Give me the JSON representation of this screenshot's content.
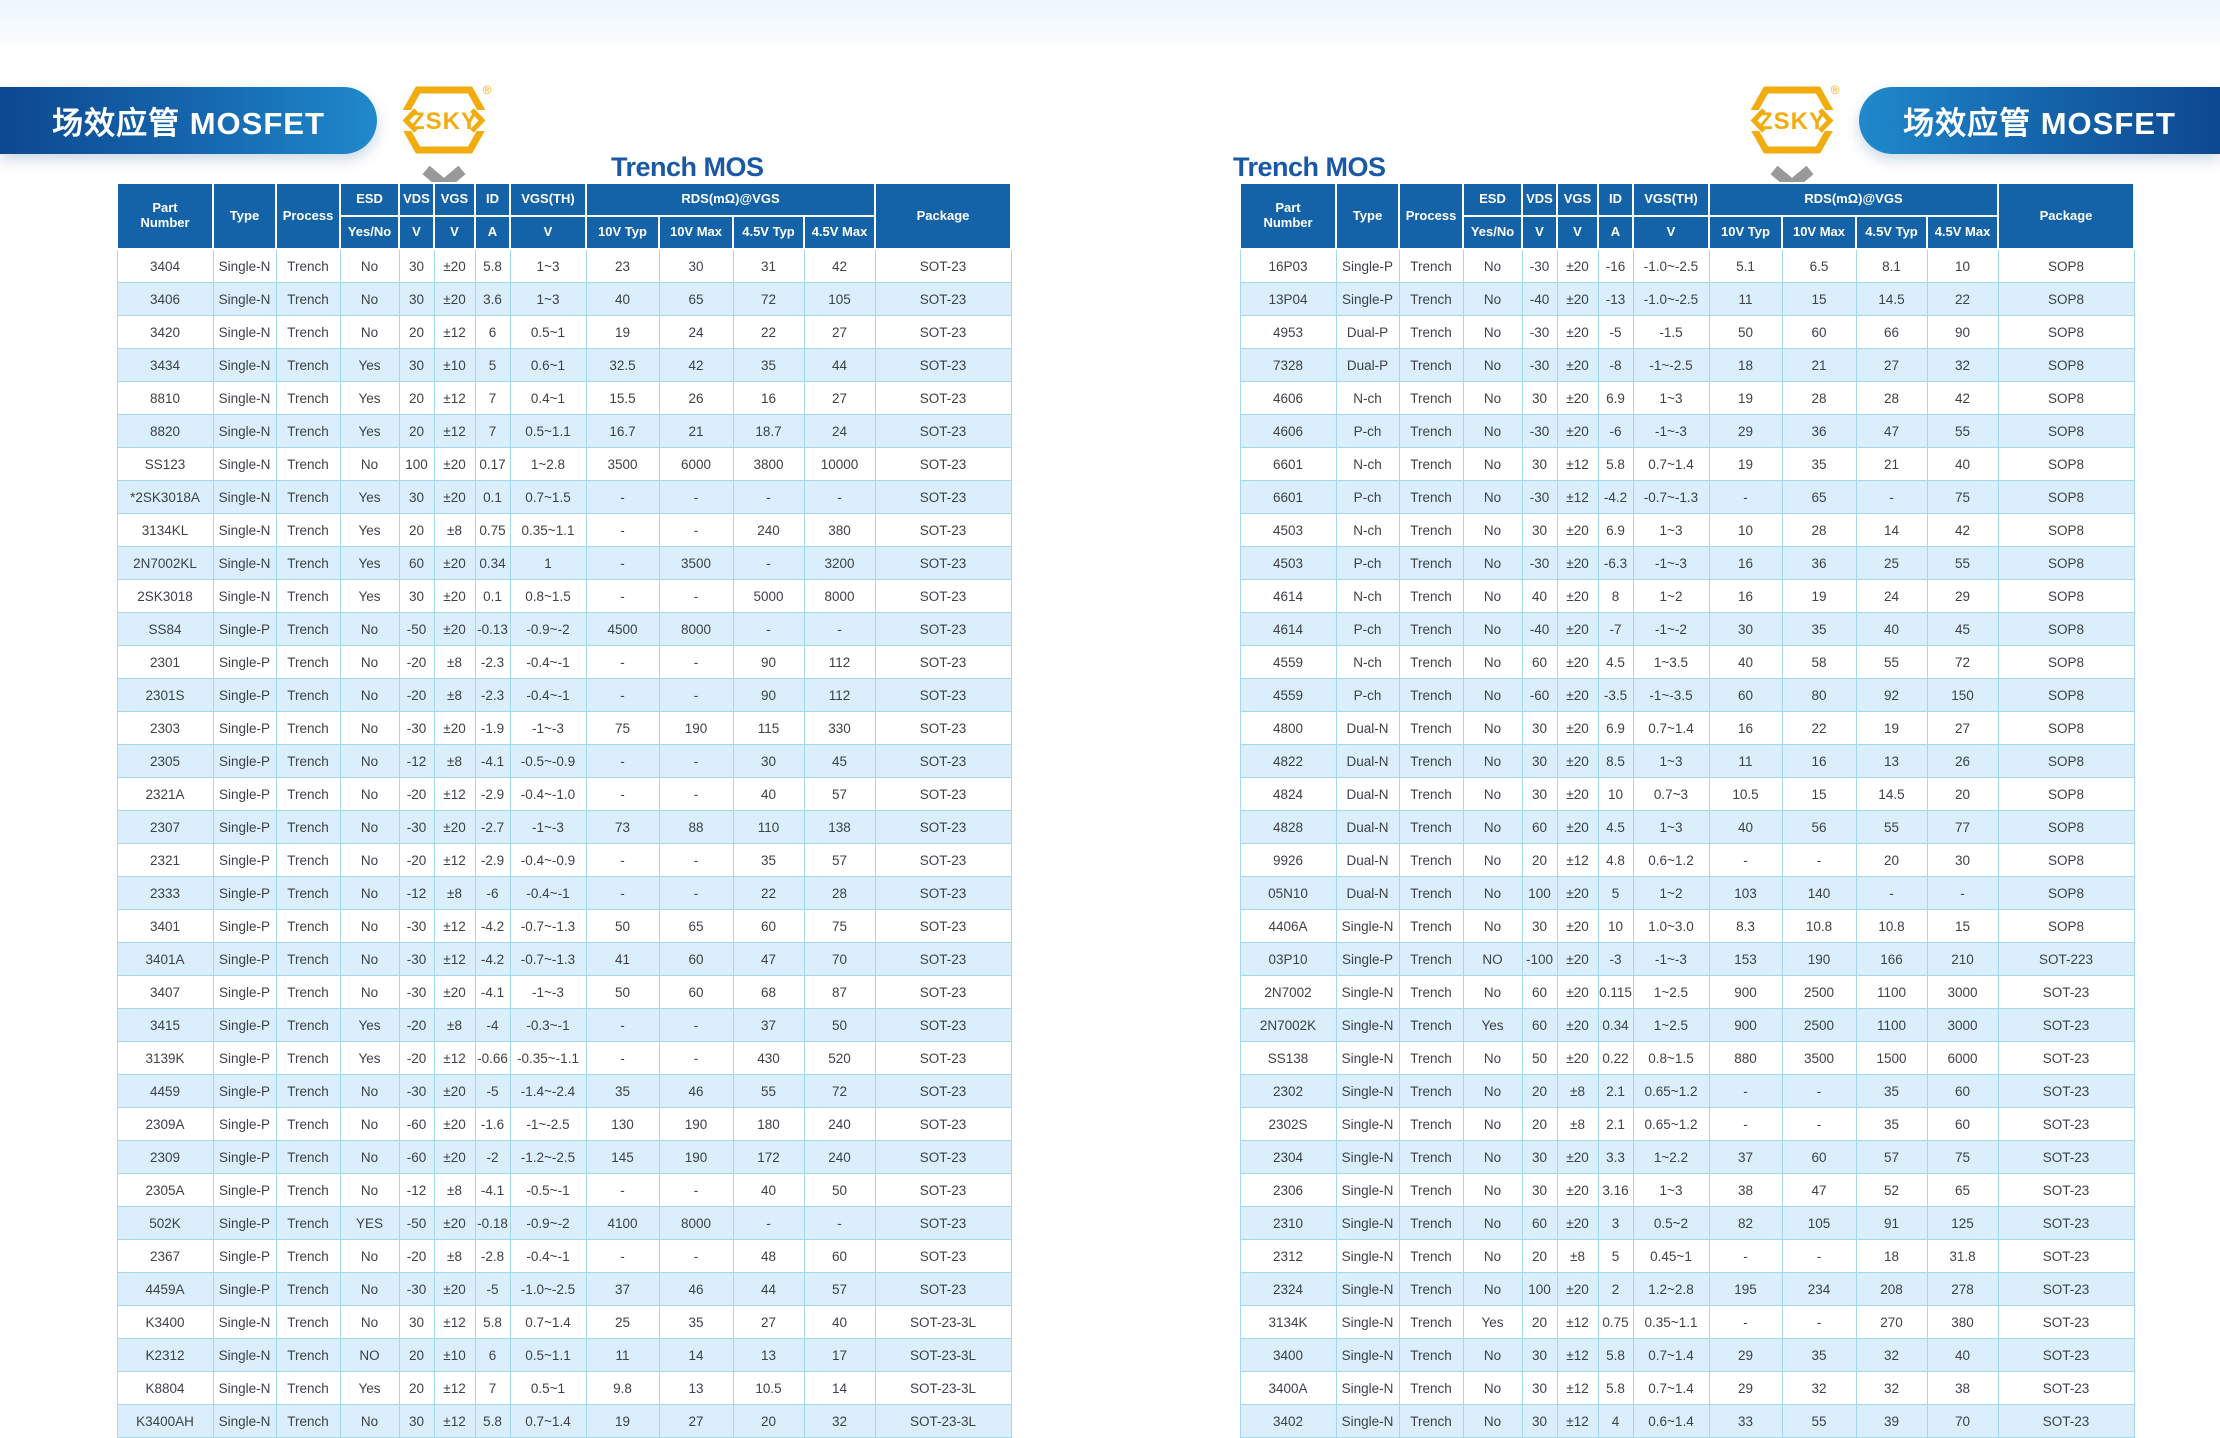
{
  "page": {
    "banner_title": "场效应管 MOSFET",
    "logo": {
      "brand": "ZSKY",
      "registered_mark": "®"
    },
    "section_title": "Trench MOS",
    "colors": {
      "header_blue": "#1463a8",
      "banner_dark": "#0d4890",
      "banner_light": "#2089cc",
      "row_alt": "#daeefb",
      "grid_border": "#a3d8f1",
      "title_blue": "#1858a6",
      "brand_gold": "#f3ac0e",
      "chevron_gray": "#97999b"
    }
  },
  "columns": {
    "part_number": "Part Number",
    "type": "Type",
    "process": "Process",
    "esd": "ESD",
    "esd_sub": "Yes/No",
    "vds": "VDS",
    "vgs": "VGS",
    "id": "ID",
    "vgsth": "VGS(TH)",
    "unit_v": "V",
    "unit_a": "A",
    "rds_group": "RDS(mΩ)@VGS",
    "rds_10v_typ": "10V Typ",
    "rds_10v_max": "10V Max",
    "rds_45_typ": "4.5V Typ",
    "rds_45_max": "4.5V Max",
    "package": "Package"
  },
  "left_table": {
    "rows": [
      [
        "3404",
        "Single-N",
        "Trench",
        "No",
        "30",
        "±20",
        "5.8",
        "1~3",
        "23",
        "30",
        "31",
        "42",
        "SOT-23"
      ],
      [
        "3406",
        "Single-N",
        "Trench",
        "No",
        "30",
        "±20",
        "3.6",
        "1~3",
        "40",
        "65",
        "72",
        "105",
        "SOT-23"
      ],
      [
        "3420",
        "Single-N",
        "Trench",
        "No",
        "20",
        "±12",
        "6",
        "0.5~1",
        "19",
        "24",
        "22",
        "27",
        "SOT-23"
      ],
      [
        "3434",
        "Single-N",
        "Trench",
        "Yes",
        "30",
        "±10",
        "5",
        "0.6~1",
        "32.5",
        "42",
        "35",
        "44",
        "SOT-23"
      ],
      [
        "8810",
        "Single-N",
        "Trench",
        "Yes",
        "20",
        "±12",
        "7",
        "0.4~1",
        "15.5",
        "26",
        "16",
        "27",
        "SOT-23"
      ],
      [
        "8820",
        "Single-N",
        "Trench",
        "Yes",
        "20",
        "±12",
        "7",
        "0.5~1.1",
        "16.7",
        "21",
        "18.7",
        "24",
        "SOT-23"
      ],
      [
        "SS123",
        "Single-N",
        "Trench",
        "No",
        "100",
        "±20",
        "0.17",
        "1~2.8",
        "3500",
        "6000",
        "3800",
        "10000",
        "SOT-23"
      ],
      [
        "*2SK3018A",
        "Single-N",
        "Trench",
        "Yes",
        "30",
        "±20",
        "0.1",
        "0.7~1.5",
        "-",
        "-",
        "-",
        "-",
        "SOT-23"
      ],
      [
        "3134KL",
        "Single-N",
        "Trench",
        "Yes",
        "20",
        "±8",
        "0.75",
        "0.35~1.1",
        "-",
        "-",
        "240",
        "380",
        "SOT-23"
      ],
      [
        "2N7002KL",
        "Single-N",
        "Trench",
        "Yes",
        "60",
        "±20",
        "0.34",
        "1",
        "-",
        "3500",
        "-",
        "3200",
        "SOT-23"
      ],
      [
        "2SK3018",
        "Single-N",
        "Trench",
        "Yes",
        "30",
        "±20",
        "0.1",
        "0.8~1.5",
        "-",
        "-",
        "5000",
        "8000",
        "SOT-23"
      ],
      [
        "SS84",
        "Single-P",
        "Trench",
        "No",
        "-50",
        "±20",
        "-0.13",
        "-0.9~-2",
        "4500",
        "8000",
        "-",
        "-",
        "SOT-23"
      ],
      [
        "2301",
        "Single-P",
        "Trench",
        "No",
        "-20",
        "±8",
        "-2.3",
        "-0.4~-1",
        "-",
        "-",
        "90",
        "112",
        "SOT-23"
      ],
      [
        "2301S",
        "Single-P",
        "Trench",
        "No",
        "-20",
        "±8",
        "-2.3",
        "-0.4~-1",
        "-",
        "-",
        "90",
        "112",
        "SOT-23"
      ],
      [
        "2303",
        "Single-P",
        "Trench",
        "No",
        "-30",
        "±20",
        "-1.9",
        "-1~-3",
        "75",
        "190",
        "115",
        "330",
        "SOT-23"
      ],
      [
        "2305",
        "Single-P",
        "Trench",
        "No",
        "-12",
        "±8",
        "-4.1",
        "-0.5~-0.9",
        "-",
        "-",
        "30",
        "45",
        "SOT-23"
      ],
      [
        "2321A",
        "Single-P",
        "Trench",
        "No",
        "-20",
        "±12",
        "-2.9",
        "-0.4~-1.0",
        "-",
        "-",
        "40",
        "57",
        "SOT-23"
      ],
      [
        "2307",
        "Single-P",
        "Trench",
        "No",
        "-30",
        "±20",
        "-2.7",
        "-1~-3",
        "73",
        "88",
        "110",
        "138",
        "SOT-23"
      ],
      [
        "2321",
        "Single-P",
        "Trench",
        "No",
        "-20",
        "±12",
        "-2.9",
        "-0.4~-0.9",
        "-",
        "-",
        "35",
        "57",
        "SOT-23"
      ],
      [
        "2333",
        "Single-P",
        "Trench",
        "No",
        "-12",
        "±8",
        "-6",
        "-0.4~-1",
        "-",
        "-",
        "22",
        "28",
        "SOT-23"
      ],
      [
        "3401",
        "Single-P",
        "Trench",
        "No",
        "-30",
        "±12",
        "-4.2",
        "-0.7~-1.3",
        "50",
        "65",
        "60",
        "75",
        "SOT-23"
      ],
      [
        "3401A",
        "Single-P",
        "Trench",
        "No",
        "-30",
        "±12",
        "-4.2",
        "-0.7~-1.3",
        "41",
        "60",
        "47",
        "70",
        "SOT-23"
      ],
      [
        "3407",
        "Single-P",
        "Trench",
        "No",
        "-30",
        "±20",
        "-4.1",
        "-1~-3",
        "50",
        "60",
        "68",
        "87",
        "SOT-23"
      ],
      [
        "3415",
        "Single-P",
        "Trench",
        "Yes",
        "-20",
        "±8",
        "-4",
        "-0.3~-1",
        "-",
        "-",
        "37",
        "50",
        "SOT-23"
      ],
      [
        "3139K",
        "Single-P",
        "Trench",
        "Yes",
        "-20",
        "±12",
        "-0.66",
        "-0.35~-1.1",
        "-",
        "-",
        "430",
        "520",
        "SOT-23"
      ],
      [
        "4459",
        "Single-P",
        "Trench",
        "No",
        "-30",
        "±20",
        "-5",
        "-1.4~-2.4",
        "35",
        "46",
        "55",
        "72",
        "SOT-23"
      ],
      [
        "2309A",
        "Single-P",
        "Trench",
        "No",
        "-60",
        "±20",
        "-1.6",
        "-1~-2.5",
        "130",
        "190",
        "180",
        "240",
        "SOT-23"
      ],
      [
        "2309",
        "Single-P",
        "Trench",
        "No",
        "-60",
        "±20",
        "-2",
        "-1.2~-2.5",
        "145",
        "190",
        "172",
        "240",
        "SOT-23"
      ],
      [
        "2305A",
        "Single-P",
        "Trench",
        "No",
        "-12",
        "±8",
        "-4.1",
        "-0.5~-1",
        "-",
        "-",
        "40",
        "50",
        "SOT-23"
      ],
      [
        "502K",
        "Single-P",
        "Trench",
        "YES",
        "-50",
        "±20",
        "-0.18",
        "-0.9~-2",
        "4100",
        "8000",
        "-",
        "-",
        "SOT-23"
      ],
      [
        "2367",
        "Single-P",
        "Trench",
        "No",
        "-20",
        "±8",
        "-2.8",
        "-0.4~-1",
        "-",
        "-",
        "48",
        "60",
        "SOT-23"
      ],
      [
        "4459A",
        "Single-P",
        "Trench",
        "No",
        "-30",
        "±20",
        "-5",
        "-1.0~-2.5",
        "37",
        "46",
        "44",
        "57",
        "SOT-23"
      ],
      [
        "K3400",
        "Single-N",
        "Trench",
        "No",
        "30",
        "±12",
        "5.8",
        "0.7~1.4",
        "25",
        "35",
        "27",
        "40",
        "SOT-23-3L"
      ],
      [
        "K2312",
        "Single-N",
        "Trench",
        "NO",
        "20",
        "±10",
        "6",
        "0.5~1.1",
        "11",
        "14",
        "13",
        "17",
        "SOT-23-3L"
      ],
      [
        "K8804",
        "Single-N",
        "Trench",
        "Yes",
        "20",
        "±12",
        "7",
        "0.5~1",
        "9.8",
        "13",
        "10.5",
        "14",
        "SOT-23-3L"
      ],
      [
        "K3400AH",
        "Single-N",
        "Trench",
        "No",
        "30",
        "±12",
        "5.8",
        "0.7~1.4",
        "19",
        "27",
        "20",
        "32",
        "SOT-23-3L"
      ]
    ]
  },
  "right_table": {
    "rows": [
      [
        "16P03",
        "Single-P",
        "Trench",
        "No",
        "-30",
        "±20",
        "-16",
        "-1.0~-2.5",
        "5.1",
        "6.5",
        "8.1",
        "10",
        "SOP8"
      ],
      [
        "13P04",
        "Single-P",
        "Trench",
        "No",
        "-40",
        "±20",
        "-13",
        "-1.0~-2.5",
        "11",
        "15",
        "14.5",
        "22",
        "SOP8"
      ],
      [
        "4953",
        "Dual-P",
        "Trench",
        "No",
        "-30",
        "±20",
        "-5",
        "-1.5",
        "50",
        "60",
        "66",
        "90",
        "SOP8"
      ],
      [
        "7328",
        "Dual-P",
        "Trench",
        "No",
        "-30",
        "±20",
        "-8",
        "-1~-2.5",
        "18",
        "21",
        "27",
        "32",
        "SOP8"
      ],
      [
        "4606",
        "N-ch",
        "Trench",
        "No",
        "30",
        "±20",
        "6.9",
        "1~3",
        "19",
        "28",
        "28",
        "42",
        "SOP8"
      ],
      [
        "4606",
        "P-ch",
        "Trench",
        "No",
        "-30",
        "±20",
        "-6",
        "-1~-3",
        "29",
        "36",
        "47",
        "55",
        "SOP8"
      ],
      [
        "6601",
        "N-ch",
        "Trench",
        "No",
        "30",
        "±12",
        "5.8",
        "0.7~1.4",
        "19",
        "35",
        "21",
        "40",
        "SOP8"
      ],
      [
        "6601",
        "P-ch",
        "Trench",
        "No",
        "-30",
        "±12",
        "-4.2",
        "-0.7~-1.3",
        "-",
        "65",
        "-",
        "75",
        "SOP8"
      ],
      [
        "4503",
        "N-ch",
        "Trench",
        "No",
        "30",
        "±20",
        "6.9",
        "1~3",
        "10",
        "28",
        "14",
        "42",
        "SOP8"
      ],
      [
        "4503",
        "P-ch",
        "Trench",
        "No",
        "-30",
        "±20",
        "-6.3",
        "-1~-3",
        "16",
        "36",
        "25",
        "55",
        "SOP8"
      ],
      [
        "4614",
        "N-ch",
        "Trench",
        "No",
        "40",
        "±20",
        "8",
        "1~2",
        "16",
        "19",
        "24",
        "29",
        "SOP8"
      ],
      [
        "4614",
        "P-ch",
        "Trench",
        "No",
        "-40",
        "±20",
        "-7",
        "-1~-2",
        "30",
        "35",
        "40",
        "45",
        "SOP8"
      ],
      [
        "4559",
        "N-ch",
        "Trench",
        "No",
        "60",
        "±20",
        "4.5",
        "1~3.5",
        "40",
        "58",
        "55",
        "72",
        "SOP8"
      ],
      [
        "4559",
        "P-ch",
        "Trench",
        "No",
        "-60",
        "±20",
        "-3.5",
        "-1~-3.5",
        "60",
        "80",
        "92",
        "150",
        "SOP8"
      ],
      [
        "4800",
        "Dual-N",
        "Trench",
        "No",
        "30",
        "±20",
        "6.9",
        "0.7~1.4",
        "16",
        "22",
        "19",
        "27",
        "SOP8"
      ],
      [
        "4822",
        "Dual-N",
        "Trench",
        "No",
        "30",
        "±20",
        "8.5",
        "1~3",
        "11",
        "16",
        "13",
        "26",
        "SOP8"
      ],
      [
        "4824",
        "Dual-N",
        "Trench",
        "No",
        "30",
        "±20",
        "10",
        "0.7~3",
        "10.5",
        "15",
        "14.5",
        "20",
        "SOP8"
      ],
      [
        "4828",
        "Dual-N",
        "Trench",
        "No",
        "60",
        "±20",
        "4.5",
        "1~3",
        "40",
        "56",
        "55",
        "77",
        "SOP8"
      ],
      [
        "9926",
        "Dual-N",
        "Trench",
        "No",
        "20",
        "±12",
        "4.8",
        "0.6~1.2",
        "-",
        "-",
        "20",
        "30",
        "SOP8"
      ],
      [
        "05N10",
        "Dual-N",
        "Trench",
        "No",
        "100",
        "±20",
        "5",
        "1~2",
        "103",
        "140",
        "-",
        "-",
        "SOP8"
      ],
      [
        "4406A",
        "Single-N",
        "Trench",
        "No",
        "30",
        "±20",
        "10",
        "1.0~3.0",
        "8.3",
        "10.8",
        "10.8",
        "15",
        "SOP8"
      ],
      [
        "03P10",
        "Single-P",
        "Trench",
        "NO",
        "-100",
        "±20",
        "-3",
        "-1~-3",
        "153",
        "190",
        "166",
        "210",
        "SOT-223"
      ],
      [
        "2N7002",
        "Single-N",
        "Trench",
        "No",
        "60",
        "±20",
        "0.115",
        "1~2.5",
        "900",
        "2500",
        "1100",
        "3000",
        "SOT-23"
      ],
      [
        "2N7002K",
        "Single-N",
        "Trench",
        "Yes",
        "60",
        "±20",
        "0.34",
        "1~2.5",
        "900",
        "2500",
        "1100",
        "3000",
        "SOT-23"
      ],
      [
        "SS138",
        "Single-N",
        "Trench",
        "No",
        "50",
        "±20",
        "0.22",
        "0.8~1.5",
        "880",
        "3500",
        "1500",
        "6000",
        "SOT-23"
      ],
      [
        "2302",
        "Single-N",
        "Trench",
        "No",
        "20",
        "±8",
        "2.1",
        "0.65~1.2",
        "-",
        "-",
        "35",
        "60",
        "SOT-23"
      ],
      [
        "2302S",
        "Single-N",
        "Trench",
        "No",
        "20",
        "±8",
        "2.1",
        "0.65~1.2",
        "-",
        "-",
        "35",
        "60",
        "SOT-23"
      ],
      [
        "2304",
        "Single-N",
        "Trench",
        "No",
        "30",
        "±20",
        "3.3",
        "1~2.2",
        "37",
        "60",
        "57",
        "75",
        "SOT-23"
      ],
      [
        "2306",
        "Single-N",
        "Trench",
        "No",
        "30",
        "±20",
        "3.16",
        "1~3",
        "38",
        "47",
        "52",
        "65",
        "SOT-23"
      ],
      [
        "2310",
        "Single-N",
        "Trench",
        "No",
        "60",
        "±20",
        "3",
        "0.5~2",
        "82",
        "105",
        "91",
        "125",
        "SOT-23"
      ],
      [
        "2312",
        "Single-N",
        "Trench",
        "No",
        "20",
        "±8",
        "5",
        "0.45~1",
        "-",
        "-",
        "18",
        "31.8",
        "SOT-23"
      ],
      [
        "2324",
        "Single-N",
        "Trench",
        "No",
        "100",
        "±20",
        "2",
        "1.2~2.8",
        "195",
        "234",
        "208",
        "278",
        "SOT-23"
      ],
      [
        "3134K",
        "Single-N",
        "Trench",
        "Yes",
        "20",
        "±12",
        "0.75",
        "0.35~1.1",
        "-",
        "-",
        "270",
        "380",
        "SOT-23"
      ],
      [
        "3400",
        "Single-N",
        "Trench",
        "No",
        "30",
        "±12",
        "5.8",
        "0.7~1.4",
        "29",
        "35",
        "32",
        "40",
        "SOT-23"
      ],
      [
        "3400A",
        "Single-N",
        "Trench",
        "No",
        "30",
        "±12",
        "5.8",
        "0.7~1.4",
        "29",
        "32",
        "32",
        "38",
        "SOT-23"
      ],
      [
        "3402",
        "Single-N",
        "Trench",
        "No",
        "30",
        "±12",
        "4",
        "0.6~1.4",
        "33",
        "55",
        "39",
        "70",
        "SOT-23"
      ]
    ]
  }
}
